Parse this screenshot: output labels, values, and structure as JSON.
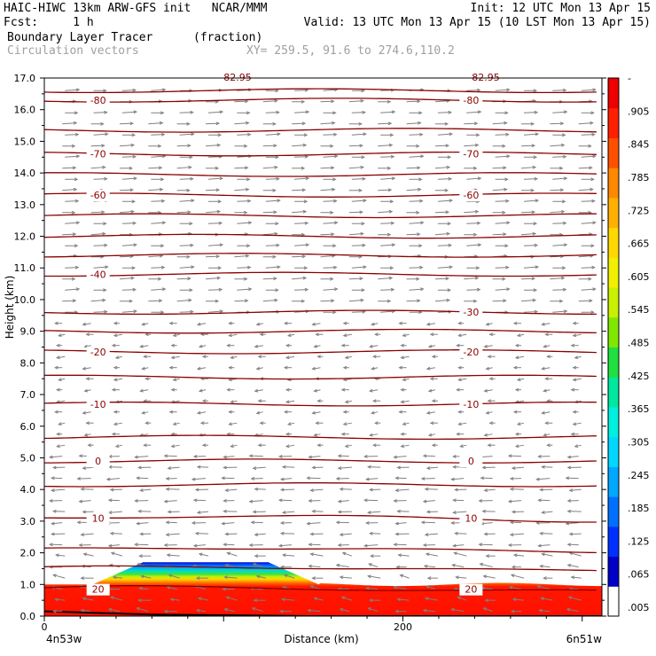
{
  "header": {
    "line1_left": "HAIC-HIWC 13km ARW-GFS init   NCAR/MMM",
    "line1_right": "Init: 12 UTC Mon 13 Apr 15",
    "line2_left": "Fcst:     1 h",
    "line2_right": "Valid: 13 UTC Mon 13 Apr 15 (10 LST Mon 13 Apr 15)",
    "field_name": "Boundary Layer Tracer",
    "field_units": "(fraction)",
    "vector_label": "Circulation vectors",
    "xy_label": "XY= 259.5, 91.6 to 274.6,110.2"
  },
  "chart_data": {
    "type": "heatmap",
    "xlabel": "Distance (km)",
    "ylabel": "Height (km)",
    "xlim": [
      0,
      311
    ],
    "ylim": [
      0.0,
      17.0
    ],
    "x_ticks": [
      0,
      200
    ],
    "y_ticks": [
      "0.0",
      "1.0",
      "2.0",
      "3.0",
      "4.0",
      "5.0",
      "6.0",
      "7.0",
      "8.0",
      "9.0",
      "10.0",
      "11.0",
      "12.0",
      "13.0",
      "14.0",
      "15.0",
      "16.0",
      "17.0"
    ],
    "left_endpoint": "4n53w",
    "right_endpoint": "6n51w",
    "colorbar": {
      "labels": [
        "-",
        ".905",
        ".845",
        ".785",
        ".725",
        ".665",
        ".605",
        ".545",
        ".485",
        ".425",
        ".365",
        ".305",
        ".245",
        ".185",
        ".125",
        ".065",
        ".005"
      ],
      "colors": [
        "#ffffff",
        "#0000c8",
        "#0030ff",
        "#0070ff",
        "#00a8ff",
        "#00d8ff",
        "#00f0e0",
        "#00e8a0",
        "#20e040",
        "#80e800",
        "#c8f000",
        "#f0f000",
        "#ffd800",
        "#ffb000",
        "#ff8800",
        "#ff5000",
        "#ff2000",
        "#ee0000"
      ]
    },
    "temperature_contours": {
      "color": "#8b0000",
      "levels": [
        {
          "value": 20,
          "height": 0.85,
          "labels": [
            "20",
            "20"
          ]
        },
        {
          "value": 10,
          "height": 3.1,
          "labels": [
            "10",
            "10"
          ]
        },
        {
          "value": 0,
          "height": 4.9,
          "labels": [
            "0",
            "0"
          ]
        },
        {
          "value": -10,
          "height": 6.7,
          "labels": [
            "-10",
            "-10"
          ]
        },
        {
          "value": -20,
          "height": 8.35,
          "labels": [
            "-20",
            "-20"
          ]
        },
        {
          "value": -30,
          "height": 9.6,
          "labels": [
            "",
            "-30"
          ]
        },
        {
          "value": -40,
          "height": 10.8,
          "labels": [
            "-40",
            ""
          ]
        },
        {
          "value": -60,
          "height": 13.3,
          "labels": [
            "-60",
            "-60"
          ]
        },
        {
          "value": -70,
          "height": 14.6,
          "labels": [
            "-70",
            "-70"
          ]
        },
        {
          "value": -80,
          "height": 16.3,
          "labels": [
            "-80",
            "-80"
          ]
        }
      ],
      "unlabeled_heights": [
        1.5,
        2.1,
        4.15,
        5.65,
        7.55,
        9.0,
        11.4,
        12.0,
        12.65,
        13.95,
        15.35,
        16.6
      ],
      "top_labels": [
        "82.95",
        "82.95"
      ]
    },
    "tracer_layer": {
      "surface_top": 1.0,
      "hill_top": 1.7,
      "hill_x_range": [
        55,
        125
      ]
    },
    "vectors": {
      "color": "#808080",
      "description_upper": "westerly",
      "description_lower": "easterly"
    }
  }
}
